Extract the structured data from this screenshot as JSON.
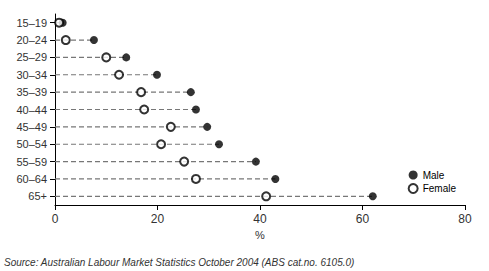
{
  "chart_data": {
    "type": "dot",
    "categories": [
      "15–19",
      "20–24",
      "25–29",
      "30–34",
      "35–39",
      "40–44",
      "45–49",
      "50–54",
      "55–59",
      "60–64",
      "65+"
    ],
    "series": [
      {
        "name": "Male",
        "color": "#000000",
        "marker": "circle",
        "values": [
          1.5,
          7.6,
          13.9,
          19.9,
          26.5,
          27.5,
          29.7,
          32.0,
          39.2,
          43.0,
          62.0
        ]
      },
      {
        "name": "Female",
        "color": "#000000",
        "marker": "open_circle",
        "values": [
          0.8,
          2.1,
          10.0,
          12.5,
          16.8,
          17.4,
          22.6,
          20.7,
          25.2,
          27.5,
          41.2
        ]
      }
    ],
    "x_label": "%",
    "xlim": [
      0,
      80
    ],
    "xticks": [
      0,
      20,
      40,
      60,
      80
    ],
    "grid": false,
    "legend": "lower right",
    "line_style": "dashed",
    "annotations": [
      "Source: Australian Labour Market Statistics October 2004 (ABS cat.no. 6105.0)"
    ]
  }
}
